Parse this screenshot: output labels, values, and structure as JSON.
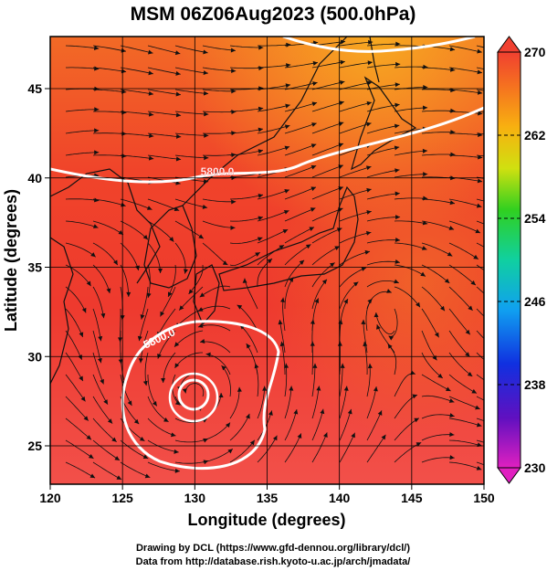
{
  "header": {
    "title": "MSM 06Z06Aug2023 (500.0hPa)"
  },
  "map": {
    "x_axis": {
      "label": "Longitude (degrees)",
      "ticks": [
        120,
        125,
        130,
        135,
        140,
        145,
        150
      ]
    },
    "y_axis": {
      "label": "Latitude  (degrees)",
      "ticks": [
        25,
        30,
        35,
        40,
        45
      ]
    },
    "contour_labels": [
      "5800.0",
      "5800.0"
    ]
  },
  "colorbar": {
    "ticks": [
      270,
      262,
      254,
      246,
      238,
      230
    ]
  },
  "footer": {
    "lines": [
      "Drawing by DCL (https://www.gfd-dennou.org/library/dcl/)",
      "Data from http://database.rish.kyoto-u.ac.jp/arch/jmadata/"
    ]
  }
}
